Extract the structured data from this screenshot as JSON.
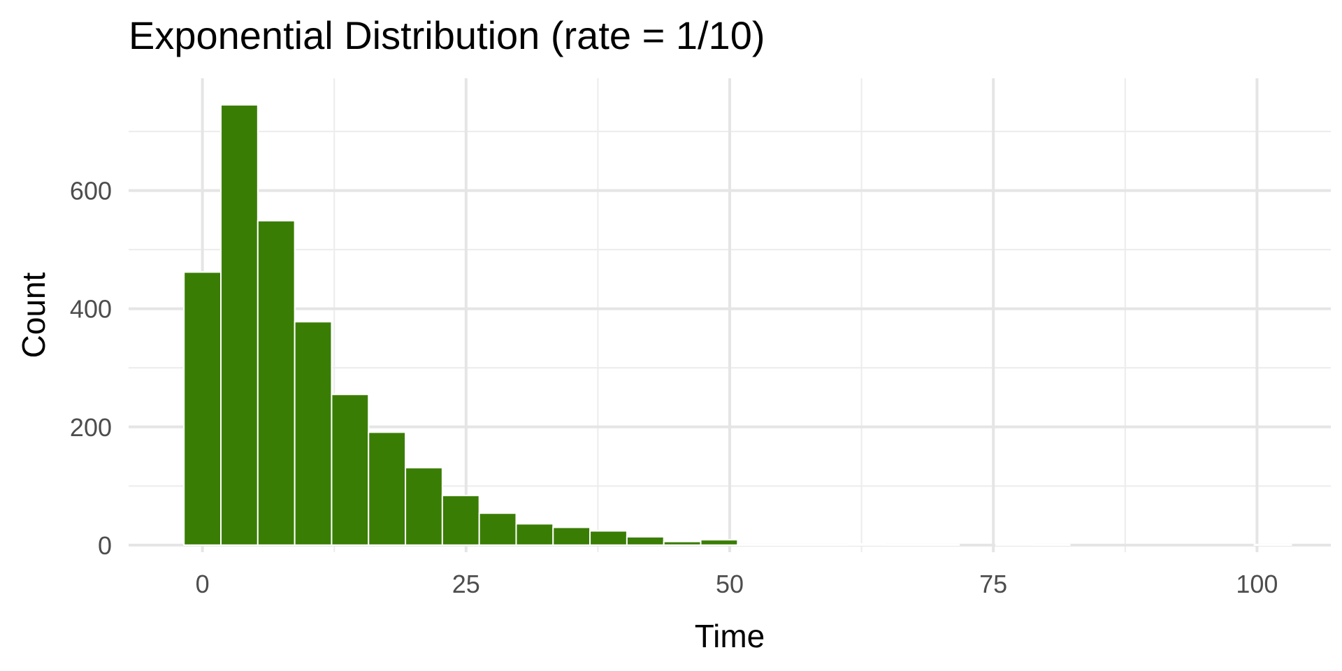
{
  "chart_data": {
    "type": "bar",
    "title": "Exponential Distribution (rate = 1/10)",
    "xlabel": "Time",
    "ylabel": "Count",
    "xlim": [
      -7,
      107
    ],
    "ylim": [
      -12,
      790
    ],
    "x_ticks": [
      0,
      25,
      50,
      75,
      100
    ],
    "x_minor_ticks": [
      12.5,
      37.5,
      62.5,
      87.5
    ],
    "y_ticks": [
      0,
      200,
      400,
      600
    ],
    "y_minor_ticks": [
      100,
      300,
      500,
      700
    ],
    "grid": true,
    "bin_width": 3.5,
    "bins": [
      {
        "x0": -1.75,
        "x1": 1.75,
        "count": 462
      },
      {
        "x0": 1.75,
        "x1": 5.25,
        "count": 745
      },
      {
        "x0": 5.25,
        "x1": 8.75,
        "count": 549
      },
      {
        "x0": 8.75,
        "x1": 12.25,
        "count": 378
      },
      {
        "x0": 12.25,
        "x1": 15.75,
        "count": 255
      },
      {
        "x0": 15.75,
        "x1": 19.25,
        "count": 191
      },
      {
        "x0": 19.25,
        "x1": 22.75,
        "count": 131
      },
      {
        "x0": 22.75,
        "x1": 26.25,
        "count": 84
      },
      {
        "x0": 26.25,
        "x1": 29.75,
        "count": 54
      },
      {
        "x0": 29.75,
        "x1": 33.25,
        "count": 36
      },
      {
        "x0": 33.25,
        "x1": 36.75,
        "count": 30
      },
      {
        "x0": 36.75,
        "x1": 40.25,
        "count": 24
      },
      {
        "x0": 40.25,
        "x1": 43.75,
        "count": 14
      },
      {
        "x0": 43.75,
        "x1": 47.25,
        "count": 6
      },
      {
        "x0": 47.25,
        "x1": 50.75,
        "count": 9
      },
      {
        "x0": 50.75,
        "x1": 54.25,
        "count": 1
      },
      {
        "x0": 54.25,
        "x1": 57.75,
        "count": 1
      },
      {
        "x0": 57.75,
        "x1": 61.25,
        "count": 1
      },
      {
        "x0": 61.25,
        "x1": 64.75,
        "count": 2
      },
      {
        "x0": 64.75,
        "x1": 68.25,
        "count": 1
      },
      {
        "x0": 68.25,
        "x1": 71.75,
        "count": 1
      },
      {
        "x0": 71.75,
        "x1": 75.25,
        "count": 0
      },
      {
        "x0": 75.25,
        "x1": 78.75,
        "count": 2
      },
      {
        "x0": 78.75,
        "x1": 82.25,
        "count": 1
      },
      {
        "x0": 82.25,
        "x1": 85.75,
        "count": 0
      },
      {
        "x0": 85.75,
        "x1": 89.25,
        "count": 0
      },
      {
        "x0": 89.25,
        "x1": 92.75,
        "count": 0
      },
      {
        "x0": 92.75,
        "x1": 96.25,
        "count": 0
      },
      {
        "x0": 96.25,
        "x1": 99.75,
        "count": 0
      },
      {
        "x0": 99.75,
        "x1": 103.25,
        "count": 1
      }
    ],
    "colors": {
      "bar_fill": "#3a7d04",
      "bar_outline": "#ffffff",
      "grid_major": "#e5e5e5",
      "grid_minor": "#ececec",
      "tick_label": "#4d4d4d",
      "axis_title": "#000000"
    }
  }
}
